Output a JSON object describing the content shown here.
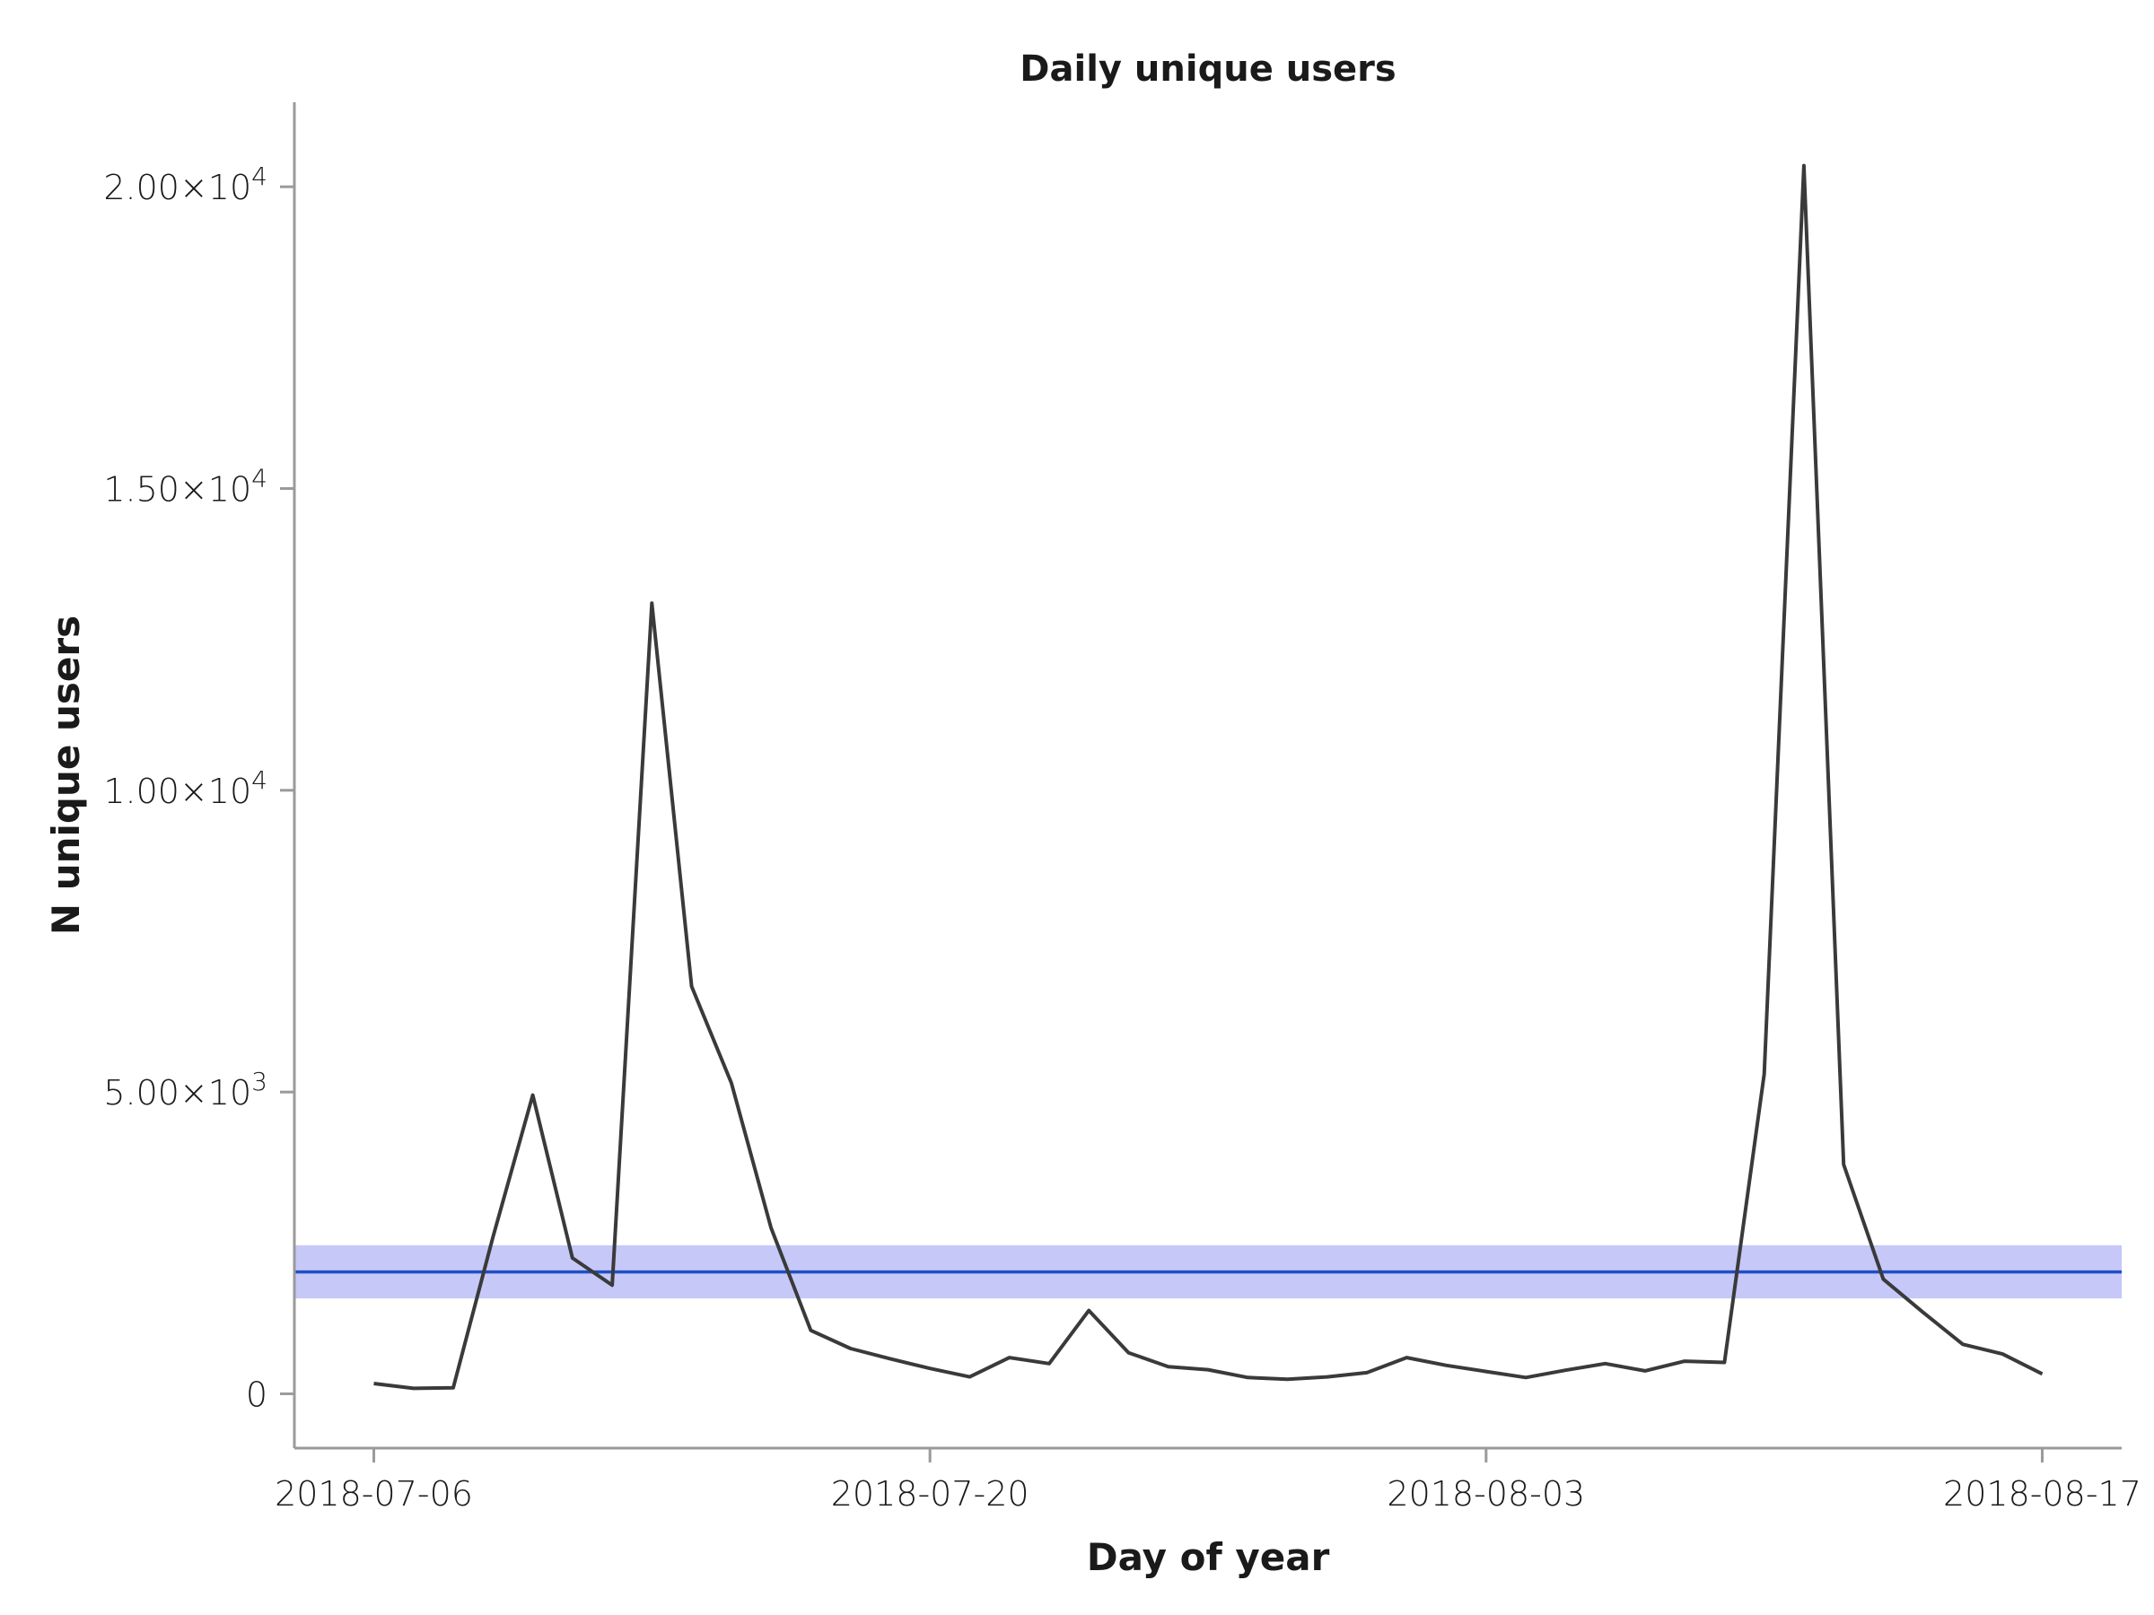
{
  "chart_data": {
    "type": "line",
    "title": "Daily unique users",
    "xlabel": "Day of year",
    "ylabel": "N unique users",
    "x_ticks": [
      "2018-07-06",
      "2018-07-20",
      "2018-08-03",
      "2018-08-17"
    ],
    "y_ticks": [
      {
        "value": 0,
        "mantissa": "0",
        "exponent": ""
      },
      {
        "value": 5000,
        "mantissa": "5.00×10",
        "exponent": "3"
      },
      {
        "value": 10000,
        "mantissa": "1.00×10",
        "exponent": "4"
      },
      {
        "value": 15000,
        "mantissa": "1.50×10",
        "exponent": "4"
      },
      {
        "value": 20000,
        "mantissa": "2.00×10",
        "exponent": "4"
      }
    ],
    "xlim": [
      "2018-07-04",
      "2018-08-19"
    ],
    "ylim": [
      -900,
      21400
    ],
    "series": [
      {
        "color": "#3a3a3a",
        "x": [
          "2018-07-06",
          "2018-07-07",
          "2018-07-08",
          "2018-07-09",
          "2018-07-10",
          "2018-07-11",
          "2018-07-12",
          "2018-07-13",
          "2018-07-14",
          "2018-07-15",
          "2018-07-16",
          "2018-07-17",
          "2018-07-18",
          "2018-07-19",
          "2018-07-20",
          "2018-07-21",
          "2018-07-22",
          "2018-07-23",
          "2018-07-24",
          "2018-07-25",
          "2018-07-26",
          "2018-07-27",
          "2018-07-28",
          "2018-07-29",
          "2018-07-30",
          "2018-07-31",
          "2018-08-01",
          "2018-08-02",
          "2018-08-03",
          "2018-08-04",
          "2018-08-05",
          "2018-08-06",
          "2018-08-07",
          "2018-08-08",
          "2018-08-09",
          "2018-08-10",
          "2018-08-11",
          "2018-08-12",
          "2018-08-13",
          "2018-08-14",
          "2018-08-15",
          "2018-08-16",
          "2018-08-17"
        ],
        "y": [
          170,
          90,
          100,
          2600,
          4950,
          2250,
          1800,
          13100,
          6750,
          5150,
          2750,
          1050,
          750,
          580,
          420,
          280,
          600,
          500,
          1380,
          680,
          450,
          400,
          270,
          240,
          280,
          350,
          600,
          470,
          370,
          270,
          390,
          500,
          380,
          540,
          520,
          5300,
          20350,
          3800,
          1900,
          1350,
          820,
          660,
          330
        ]
      }
    ],
    "reference_line": {
      "value": 2020,
      "color": "#1f4fc2"
    },
    "reference_band": {
      "low": 1580,
      "high": 2460,
      "color": "#c6c8f8"
    },
    "grid": false,
    "legend": "none"
  }
}
